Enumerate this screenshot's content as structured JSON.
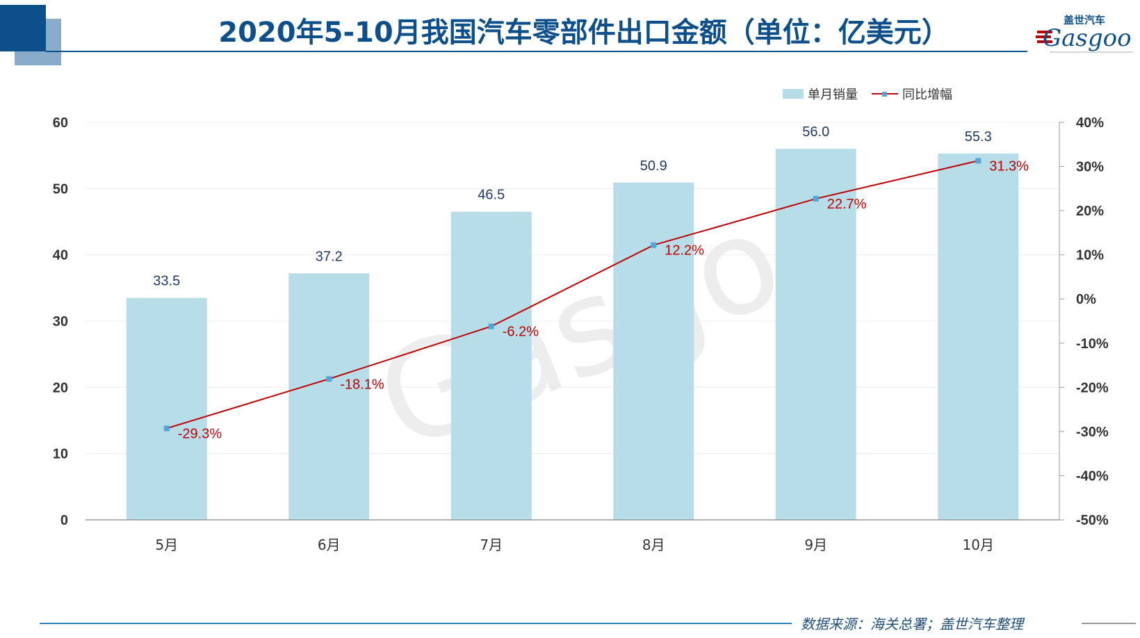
{
  "header": {
    "title": "2020年5-10月我国汽车零部件出口金额（单位：亿美元）",
    "logo_cn": "盖世汽车",
    "logo_en": "Gasgoo",
    "watermark": "盖世汽车 Gasgoo"
  },
  "footer": {
    "source": "数据来源：海关总署；盖世汽车整理"
  },
  "colors": {
    "bar": "#b7dde8",
    "line": "#c00000",
    "marker": "#4ea6dc",
    "title": "#0d4f8b"
  },
  "chart_data": {
    "type": "bar+line",
    "title": "2020年5-10月我国汽车零部件出口金额（单位：亿美元）",
    "categories": [
      "5月",
      "6月",
      "7月",
      "8月",
      "9月",
      "10月"
    ],
    "series": [
      {
        "name": "单月销量",
        "type": "bar",
        "axis": "left",
        "values": [
          33.5,
          37.2,
          46.5,
          50.9,
          56.0,
          55.3
        ],
        "labels": [
          "33.5",
          "37.2",
          "46.5",
          "50.9",
          "56.0",
          "55.3"
        ]
      },
      {
        "name": "同比增幅",
        "type": "line",
        "axis": "right",
        "values": [
          -29.3,
          -18.1,
          -6.2,
          12.2,
          22.7,
          31.3
        ],
        "labels": [
          "-29.3%",
          "-18.1%",
          "-6.2%",
          "12.2%",
          "22.7%",
          "31.3%"
        ]
      }
    ],
    "ylim": [
      0,
      60
    ],
    "yticks": [
      "0",
      "10",
      "20",
      "30",
      "40",
      "50",
      "60"
    ],
    "y2lim": [
      -50,
      40
    ],
    "y2ticks": [
      "-50%",
      "-40%",
      "-30%",
      "-20%",
      "-10%",
      "0%",
      "10%",
      "20%",
      "30%",
      "40%"
    ],
    "grid": true,
    "legend": "top-right"
  }
}
